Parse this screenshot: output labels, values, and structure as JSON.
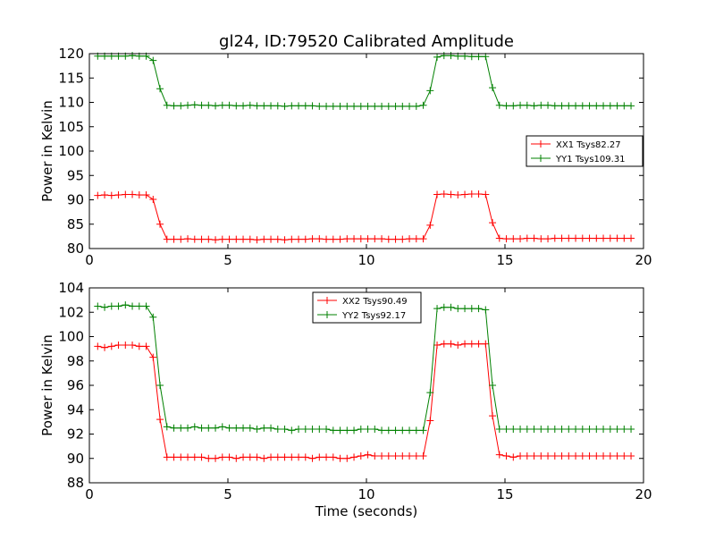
{
  "figure_title": "gl24, ID:79520 Calibrated Amplitude",
  "chart_data": [
    {
      "type": "line",
      "xlabel": "",
      "ylabel": "Power in Kelvin",
      "xlim": [
        0,
        20
      ],
      "ylim": [
        80,
        120
      ],
      "xticks": [
        0,
        5,
        10,
        15,
        20
      ],
      "yticks": [
        80,
        85,
        90,
        95,
        100,
        105,
        110,
        115,
        120
      ],
      "grid": false,
      "legend_position": "center-right",
      "marker": "+",
      "x": [
        0.3,
        0.55,
        0.8,
        1.05,
        1.3,
        1.55,
        1.8,
        2.05,
        2.3,
        2.55,
        2.8,
        3.05,
        3.3,
        3.55,
        3.8,
        4.05,
        4.3,
        4.55,
        4.8,
        5.05,
        5.3,
        5.55,
        5.8,
        6.05,
        6.3,
        6.55,
        6.8,
        7.05,
        7.3,
        7.55,
        7.8,
        8.05,
        8.3,
        8.55,
        8.8,
        9.05,
        9.3,
        9.55,
        9.8,
        10.05,
        10.3,
        10.55,
        10.8,
        11.05,
        11.3,
        11.55,
        11.8,
        12.05,
        12.3,
        12.55,
        12.8,
        13.05,
        13.3,
        13.55,
        13.8,
        14.05,
        14.3,
        14.55,
        14.8,
        15.05,
        15.3,
        15.55,
        15.8,
        16.05,
        16.3,
        16.55,
        16.8,
        17.05,
        17.3,
        17.55,
        17.8,
        18.05,
        18.3,
        18.55,
        18.8,
        19.05,
        19.3,
        19.55
      ],
      "series": [
        {
          "name": "XX1 Tsys82.27",
          "color": "#ff0000",
          "values": [
            90.9,
            91.0,
            90.9,
            91.0,
            91.1,
            91.1,
            91.0,
            91.0,
            90.1,
            85.0,
            81.9,
            81.9,
            81.9,
            82.0,
            81.9,
            81.9,
            81.9,
            81.8,
            81.9,
            81.9,
            81.9,
            81.9,
            81.9,
            81.8,
            81.9,
            81.9,
            81.9,
            81.8,
            81.9,
            81.9,
            81.9,
            82.0,
            82.0,
            81.9,
            81.9,
            81.9,
            82.0,
            82.0,
            82.0,
            82.0,
            82.0,
            82.0,
            81.9,
            81.9,
            81.9,
            82.0,
            82.0,
            82.0,
            84.8,
            91.1,
            91.2,
            91.1,
            91.0,
            91.1,
            91.2,
            91.2,
            91.1,
            85.3,
            82.1,
            82.0,
            82.0,
            82.0,
            82.1,
            82.1,
            82.0,
            82.0,
            82.1,
            82.1,
            82.1,
            82.1,
            82.1,
            82.1,
            82.1,
            82.1,
            82.1,
            82.1,
            82.1,
            82.1
          ]
        },
        {
          "name": "YY1 Tsys109.31",
          "color": "#008000",
          "values": [
            119.5,
            119.5,
            119.5,
            119.5,
            119.5,
            119.6,
            119.5,
            119.5,
            118.6,
            112.8,
            109.4,
            109.3,
            109.3,
            109.4,
            109.5,
            109.4,
            109.4,
            109.3,
            109.4,
            109.4,
            109.3,
            109.3,
            109.4,
            109.3,
            109.3,
            109.3,
            109.3,
            109.2,
            109.3,
            109.3,
            109.3,
            109.3,
            109.2,
            109.2,
            109.2,
            109.2,
            109.2,
            109.2,
            109.2,
            109.2,
            109.2,
            109.2,
            109.2,
            109.2,
            109.2,
            109.2,
            109.2,
            109.4,
            112.4,
            119.3,
            119.6,
            119.6,
            119.5,
            119.5,
            119.4,
            119.4,
            119.4,
            113.0,
            109.4,
            109.3,
            109.3,
            109.4,
            109.4,
            109.3,
            109.4,
            109.4,
            109.3,
            109.3,
            109.3,
            109.3,
            109.3,
            109.3,
            109.3,
            109.3,
            109.3,
            109.3,
            109.3,
            109.3
          ]
        }
      ]
    },
    {
      "type": "line",
      "xlabel": "Time (seconds)",
      "ylabel": "Power in Kelvin",
      "xlim": [
        0,
        20
      ],
      "ylim": [
        88,
        104
      ],
      "xticks": [
        0,
        5,
        10,
        15,
        20
      ],
      "yticks": [
        88,
        90,
        92,
        94,
        96,
        98,
        100,
        102,
        104
      ],
      "grid": false,
      "legend_position": "top-center",
      "marker": "+",
      "x": [
        0.3,
        0.55,
        0.8,
        1.05,
        1.3,
        1.55,
        1.8,
        2.05,
        2.3,
        2.55,
        2.8,
        3.05,
        3.3,
        3.55,
        3.8,
        4.05,
        4.3,
        4.55,
        4.8,
        5.05,
        5.3,
        5.55,
        5.8,
        6.05,
        6.3,
        6.55,
        6.8,
        7.05,
        7.3,
        7.55,
        7.8,
        8.05,
        8.3,
        8.55,
        8.8,
        9.05,
        9.3,
        9.55,
        9.8,
        10.05,
        10.3,
        10.55,
        10.8,
        11.05,
        11.3,
        11.55,
        11.8,
        12.05,
        12.3,
        12.55,
        12.8,
        13.05,
        13.3,
        13.55,
        13.8,
        14.05,
        14.3,
        14.55,
        14.8,
        15.05,
        15.3,
        15.55,
        15.8,
        16.05,
        16.3,
        16.55,
        16.8,
        17.05,
        17.3,
        17.55,
        17.8,
        18.05,
        18.3,
        18.55,
        18.8,
        19.05,
        19.3,
        19.55
      ],
      "series": [
        {
          "name": "XX2 Tsys90.49",
          "color": "#ff0000",
          "values": [
            99.2,
            99.1,
            99.2,
            99.3,
            99.3,
            99.3,
            99.2,
            99.2,
            98.3,
            93.2,
            90.1,
            90.1,
            90.1,
            90.1,
            90.1,
            90.1,
            90.0,
            90.0,
            90.1,
            90.1,
            90.0,
            90.1,
            90.1,
            90.1,
            90.0,
            90.1,
            90.1,
            90.1,
            90.1,
            90.1,
            90.1,
            90.0,
            90.1,
            90.1,
            90.1,
            90.0,
            90.0,
            90.1,
            90.2,
            90.3,
            90.2,
            90.2,
            90.2,
            90.2,
            90.2,
            90.2,
            90.2,
            90.2,
            93.1,
            99.3,
            99.4,
            99.4,
            99.3,
            99.4,
            99.4,
            99.4,
            99.4,
            93.5,
            90.3,
            90.2,
            90.1,
            90.2,
            90.2,
            90.2,
            90.2,
            90.2,
            90.2,
            90.2,
            90.2,
            90.2,
            90.2,
            90.2,
            90.2,
            90.2,
            90.2,
            90.2,
            90.2,
            90.2
          ]
        },
        {
          "name": "YY2 Tsys92.17",
          "color": "#008000",
          "values": [
            102.5,
            102.4,
            102.5,
            102.5,
            102.6,
            102.5,
            102.5,
            102.5,
            101.6,
            96.0,
            92.6,
            92.5,
            92.5,
            92.5,
            92.6,
            92.5,
            92.5,
            92.5,
            92.6,
            92.5,
            92.5,
            92.5,
            92.5,
            92.4,
            92.5,
            92.5,
            92.4,
            92.4,
            92.3,
            92.4,
            92.4,
            92.4,
            92.4,
            92.4,
            92.3,
            92.3,
            92.3,
            92.3,
            92.4,
            92.4,
            92.4,
            92.3,
            92.3,
            92.3,
            92.3,
            92.3,
            92.3,
            92.3,
            95.4,
            102.3,
            102.4,
            102.4,
            102.3,
            102.3,
            102.3,
            102.3,
            102.2,
            96.0,
            92.4,
            92.4,
            92.4,
            92.4,
            92.4,
            92.4,
            92.4,
            92.4,
            92.4,
            92.4,
            92.4,
            92.4,
            92.4,
            92.4,
            92.4,
            92.4,
            92.4,
            92.4,
            92.4,
            92.4
          ]
        }
      ]
    }
  ]
}
